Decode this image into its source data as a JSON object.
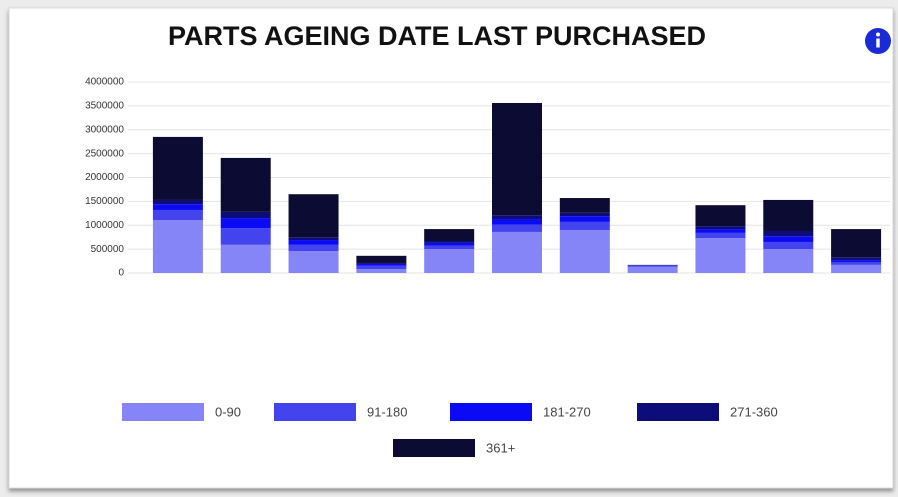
{
  "chart_data": {
    "type": "stacked-bar",
    "title": "PARTS AGEING DATE LAST PURCHASED",
    "categories": [
      null,
      null,
      null,
      null,
      null,
      null,
      null,
      null,
      null,
      null,
      null
    ],
    "series": [
      {
        "name": "0-90",
        "color": "#8585f7",
        "values": [
          1110000,
          590000,
          460000,
          80000,
          500000,
          860000,
          900000,
          130000,
          730000,
          500000,
          170000
        ]
      },
      {
        "name": "91-180",
        "color": "#4444ee",
        "values": [
          210000,
          350000,
          130000,
          70000,
          70000,
          150000,
          170000,
          20000,
          110000,
          150000,
          60000
        ]
      },
      {
        "name": "181-270",
        "color": "#0a0af5",
        "values": [
          120000,
          210000,
          100000,
          40000,
          60000,
          120000,
          120000,
          10000,
          80000,
          120000,
          40000
        ]
      },
      {
        "name": "271-360",
        "color": "#0c0c7a",
        "values": [
          90000,
          130000,
          60000,
          20000,
          40000,
          80000,
          70000,
          10000,
          60000,
          110000,
          60000
        ]
      },
      {
        "name": "361+",
        "color": "#0b0b33",
        "values": [
          1320000,
          1130000,
          900000,
          150000,
          250000,
          2350000,
          310000,
          0,
          440000,
          650000,
          590000
        ]
      }
    ],
    "ylim": [
      0,
      4000000
    ],
    "yticks": [
      0,
      500000,
      1000000,
      1500000,
      2000000,
      2500000,
      3000000,
      3500000,
      4000000
    ],
    "grid": true
  }
}
